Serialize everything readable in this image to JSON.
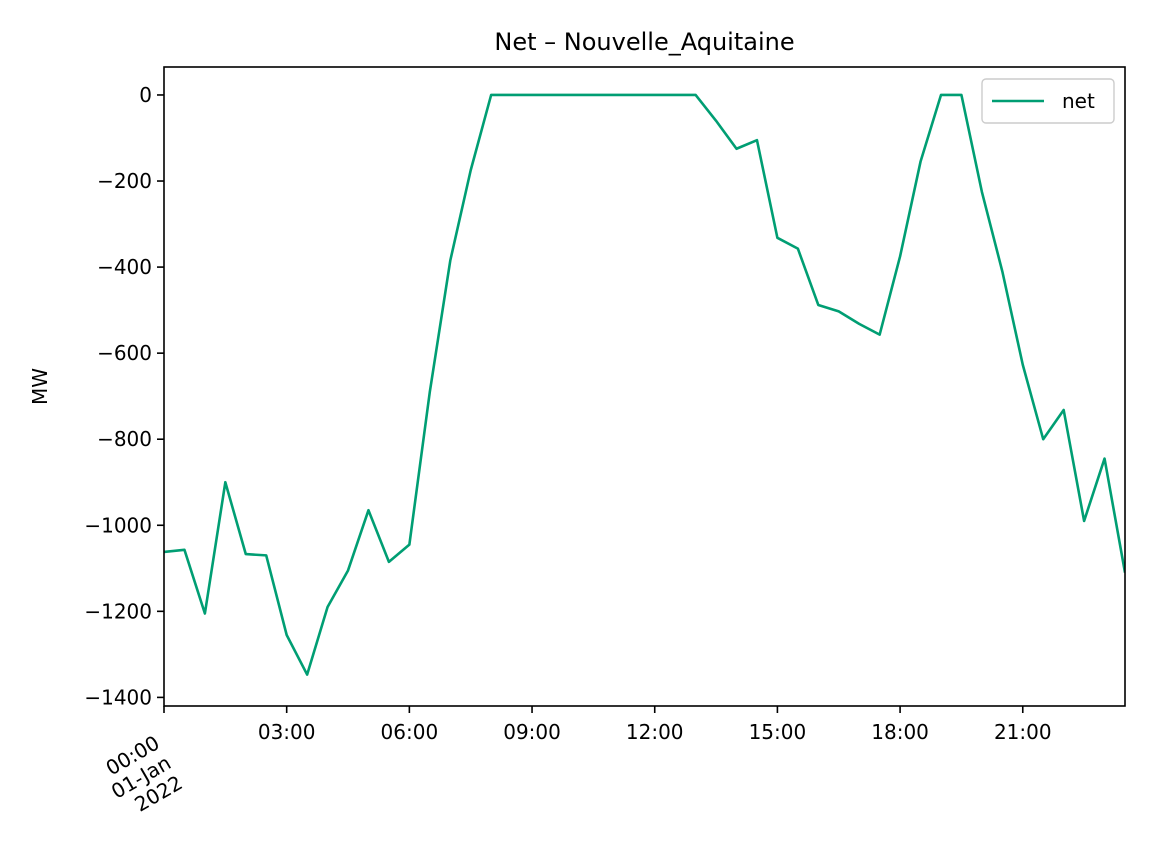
{
  "chart_data": {
    "type": "line",
    "title": "Net – Nouvelle_Aquitaine",
    "xlabel": "",
    "ylabel": "MW",
    "x_unit": "hours",
    "x": [
      0,
      0.5,
      1,
      1.5,
      2,
      2.5,
      3,
      3.5,
      4,
      4.5,
      5,
      5.5,
      6,
      6.5,
      7,
      7.5,
      8,
      8.5,
      9,
      9.5,
      10,
      10.5,
      11,
      11.5,
      12,
      12.5,
      13,
      13.5,
      14,
      14.5,
      15,
      15.5,
      16,
      16.5,
      17,
      17.5,
      18,
      18.5,
      19,
      19.5,
      20,
      20.5,
      21,
      21.5,
      22,
      22.5,
      23,
      23.5
    ],
    "series": [
      {
        "name": "net",
        "color": "#009e73",
        "values": [
          -1062,
          -1057,
          -1205,
          -900,
          -1067,
          -1070,
          -1255,
          -1347,
          -1190,
          -1105,
          -965,
          -1085,
          -1045,
          -690,
          -385,
          -175,
          0,
          0,
          0,
          0,
          0,
          0,
          0,
          0,
          0,
          0,
          0,
          -60,
          -125,
          -105,
          -332,
          -357,
          -488,
          -503,
          -532,
          -557,
          -375,
          -155,
          0,
          0,
          -225,
          -410,
          -627,
          -800,
          -732,
          -990,
          -845,
          -1110
        ]
      }
    ],
    "xlim": [
      0,
      23.5
    ],
    "ylim": [
      -1420,
      65
    ],
    "yticks": [
      0,
      -200,
      -400,
      -600,
      -800,
      -1000,
      -1200,
      -1400
    ],
    "ytick_labels": [
      "0",
      "−200",
      "−400",
      "−600",
      "−800",
      "−1000",
      "−1200",
      "−1400"
    ],
    "xticks": [
      0,
      3,
      6,
      9,
      12,
      15,
      18,
      21
    ],
    "xtick_labels": [
      "00:00\n01-Jan\n2022",
      "03:00",
      "06:00",
      "09:00",
      "12:00",
      "15:00",
      "18:00",
      "21:00"
    ],
    "grid": false,
    "legend": "upper right"
  }
}
